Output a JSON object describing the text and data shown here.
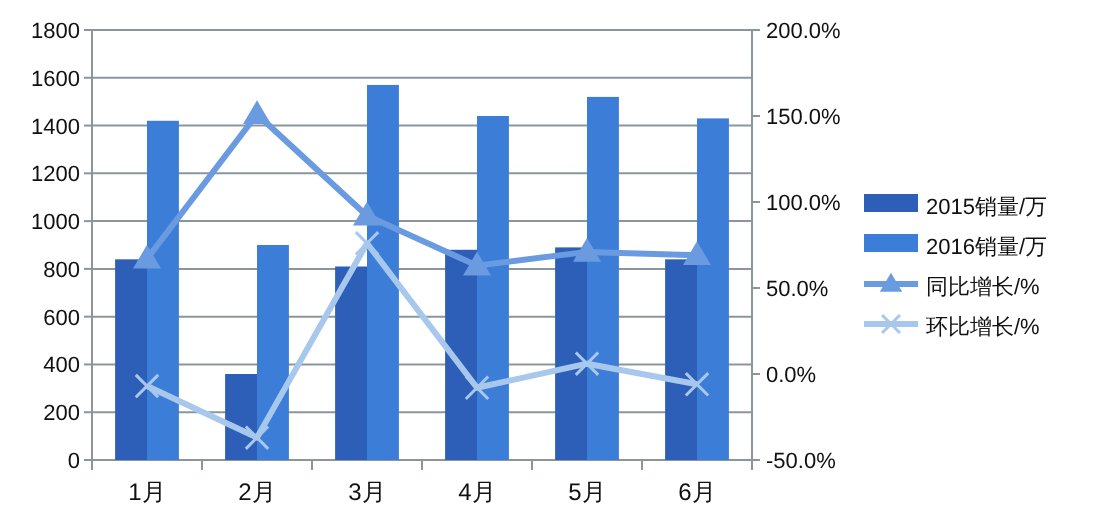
{
  "chart_data": {
    "type": "bar",
    "categories": [
      "1月",
      "2月",
      "3月",
      "4月",
      "5月",
      "6月"
    ],
    "series": [
      {
        "name": "2015销量/万",
        "color": "#2e5fb8",
        "values": [
          840,
          360,
          810,
          880,
          890,
          840
        ]
      },
      {
        "name": "2016销量/万",
        "color": "#3c7dd8",
        "values": [
          1420,
          900,
          1570,
          1440,
          1520,
          1430
        ]
      },
      {
        "name": "同比增长/%",
        "type": "line",
        "axis": "y2",
        "marker": "triangle",
        "color": "#6a9be0",
        "values": [
          67,
          151,
          92,
          63,
          71,
          69
        ]
      },
      {
        "name": "环比增长/%",
        "type": "line",
        "axis": "y2",
        "marker": "cross",
        "color": "#a7c8ec",
        "values": [
          -7,
          -37,
          76,
          -8,
          6,
          -6
        ]
      }
    ],
    "ylim": [
      0,
      1800
    ],
    "yticks": [
      0,
      200,
      400,
      600,
      800,
      1000,
      1200,
      1400,
      1600,
      1800
    ],
    "y2lim": [
      -50,
      200
    ],
    "y2ticks": [
      {
        "value": -50,
        "label": "-50.0%"
      },
      {
        "value": 0,
        "label": "0.0%"
      },
      {
        "value": 50,
        "label": "50.0%"
      },
      {
        "value": 100,
        "label": "100.0%"
      },
      {
        "value": 150,
        "label": "150.0%"
      },
      {
        "value": 200,
        "label": "200.0%"
      }
    ],
    "grid": "y",
    "legend": "right"
  }
}
